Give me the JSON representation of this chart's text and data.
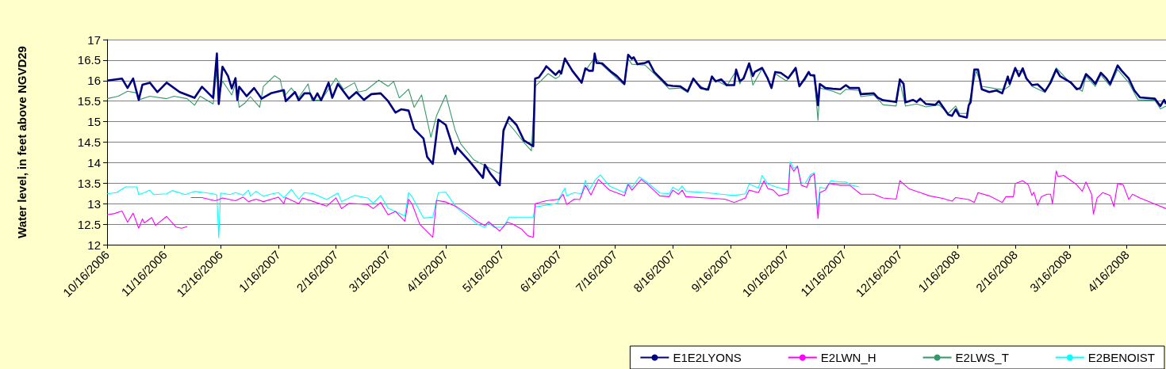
{
  "chart_data": {
    "type": "line",
    "ylabel": "Water level, in feet above NGVD29",
    "xlim": [
      "2006-10-16",
      "2008-05-07"
    ],
    "ylim": [
      12,
      17
    ],
    "yticks": [
      12,
      12.5,
      13,
      13.5,
      14,
      14.5,
      15,
      15.5,
      16,
      16.5,
      17
    ],
    "xticks": [
      {
        "value": "2006-10-16",
        "label": "10/16/2006"
      },
      {
        "value": "2006-11-16",
        "label": "11/16/2006"
      },
      {
        "value": "2006-12-16",
        "label": "12/16/2006"
      },
      {
        "value": "2007-01-16",
        "label": "1/16/2007"
      },
      {
        "value": "2007-02-16",
        "label": "2/16/2007"
      },
      {
        "value": "2007-03-16",
        "label": "3/16/2007"
      },
      {
        "value": "2007-04-16",
        "label": "4/16/2007"
      },
      {
        "value": "2007-05-16",
        "label": "5/16/2007"
      },
      {
        "value": "2007-06-16",
        "label": "6/16/2007"
      },
      {
        "value": "2007-07-16",
        "label": "7/16/2007"
      },
      {
        "value": "2007-08-16",
        "label": "8/16/2007"
      },
      {
        "value": "2007-09-16",
        "label": "9/16/2007"
      },
      {
        "value": "2007-10-16",
        "label": "10/16/2007"
      },
      {
        "value": "2007-11-16",
        "label": "11/16/2007"
      },
      {
        "value": "2007-12-16",
        "label": "12/16/2007"
      },
      {
        "value": "2008-01-16",
        "label": "1/16/2008"
      },
      {
        "value": "2008-02-16",
        "label": "2/16/2008"
      },
      {
        "value": "2008-03-16",
        "label": "3/16/2008"
      },
      {
        "value": "2008-04-16",
        "label": "4/16/2008"
      }
    ],
    "grid": "y",
    "legend": "bottom right",
    "marker": "none",
    "line_style": "solid",
    "series": [
      {
        "name": "E1E2LYONS",
        "color": "#000080",
        "x": [
          "2006-10-16",
          "2006-10-24",
          "2006-10-27",
          "2006-10-30",
          "2006-11-02",
          "2006-11-04",
          "2006-11-08",
          "2006-11-12",
          "2006-11-17",
          "2006-11-24",
          "2006-12-02",
          "2006-12-06",
          "2006-12-12",
          "2006-12-14",
          "2006-12-15",
          "2006-12-17",
          "2006-12-20",
          "2006-12-22",
          "2006-12-24",
          "2006-12-25",
          "2006-12-26",
          "2006-12-30",
          "2007-01-03",
          "2007-01-07",
          "2007-01-12",
          "2007-01-19",
          "2007-01-20",
          "2007-01-25",
          "2007-01-27",
          "2007-01-30",
          "2007-02-02",
          "2007-02-04",
          "2007-02-06",
          "2007-02-08",
          "2007-02-12",
          "2007-02-14",
          "2007-02-17",
          "2007-02-23",
          "2007-02-27",
          "2007-03-03",
          "2007-03-07",
          "2007-03-12",
          "2007-03-16",
          "2007-03-20",
          "2007-03-23",
          "2007-03-27",
          "2007-03-30",
          "2007-04-04",
          "2007-04-06",
          "2007-04-09",
          "2007-04-12",
          "2007-04-16",
          "2007-04-21",
          "2007-04-22",
          "2007-04-29",
          "2007-05-06",
          "2007-05-07",
          "2007-05-10",
          "2007-05-15",
          "2007-05-17",
          "2007-05-20",
          "2007-05-24",
          "2007-05-28",
          "2007-06-02",
          "2007-06-03",
          "2007-06-05",
          "2007-06-08",
          "2007-06-09",
          "2007-06-14",
          "2007-06-16",
          "2007-06-17",
          "2007-06-19",
          "2007-06-23",
          "2007-06-28",
          "2007-06-30",
          "2007-07-02",
          "2007-07-04",
          "2007-07-05",
          "2007-07-06",
          "2007-07-09",
          "2007-07-14",
          "2007-07-17",
          "2007-07-21",
          "2007-07-23",
          "2007-07-25",
          "2007-07-26",
          "2007-07-28",
          "2007-08-01",
          "2007-08-03",
          "2007-08-06",
          "2007-08-13",
          "2007-08-16",
          "2007-08-20",
          "2007-08-24",
          "2007-08-27",
          "2007-08-31",
          "2007-09-04",
          "2007-09-06",
          "2007-09-08",
          "2007-09-11",
          "2007-09-14",
          "2007-09-18",
          "2007-09-19",
          "2007-09-21",
          "2007-09-23",
          "2007-09-26",
          "2007-09-28",
          "2007-09-29",
          "2007-10-03",
          "2007-10-06",
          "2007-10-08",
          "2007-10-10",
          "2007-10-13",
          "2007-10-17",
          "2007-10-21",
          "2007-10-23",
          "2007-10-26",
          "2007-10-28",
          "2007-10-29",
          "2007-10-31",
          "2007-11-02",
          "2007-11-03",
          "2007-11-06",
          "2007-11-10",
          "2007-11-14",
          "2007-11-17",
          "2007-11-19",
          "2007-11-24",
          "2007-11-25",
          "2007-12-02",
          "2007-12-04",
          "2007-12-07",
          "2007-12-11",
          "2007-12-14",
          "2007-12-16",
          "2007-12-18",
          "2007-12-19",
          "2007-12-23",
          "2007-12-25",
          "2007-12-27",
          "2007-12-30",
          "2008-01-04",
          "2008-01-06",
          "2008-01-11",
          "2008-01-13",
          "2008-01-15",
          "2008-01-17",
          "2008-01-21",
          "2008-01-22",
          "2008-01-23",
          "2008-01-25",
          "2008-01-27",
          "2008-01-29",
          "2008-02-02",
          "2008-02-06",
          "2008-02-09",
          "2008-02-12",
          "2008-02-13",
          "2008-02-16",
          "2008-02-18",
          "2008-02-20",
          "2008-02-22",
          "2008-02-25",
          "2008-02-28",
          "2008-03-03",
          "2008-03-06",
          "2008-03-09",
          "2008-03-11",
          "2008-03-17",
          "2008-03-20",
          "2008-03-22",
          "2008-03-25",
          "2008-03-28",
          "2008-03-30",
          "2008-04-02",
          "2008-04-05",
          "2008-04-07",
          "2008-04-11",
          "2008-04-13",
          "2008-04-17",
          "2008-04-20",
          "2008-04-23",
          "2008-05-01",
          "2008-05-04",
          "2008-05-06",
          "2008-05-07"
        ],
        "values": [
          16.0,
          16.05,
          15.82,
          16.05,
          15.53,
          15.9,
          15.95,
          15.72,
          15.95,
          15.72,
          15.58,
          15.85,
          15.58,
          16.66,
          15.43,
          16.34,
          16.11,
          15.81,
          16.06,
          15.53,
          15.85,
          15.62,
          15.82,
          15.56,
          15.69,
          15.77,
          15.5,
          15.72,
          15.52,
          15.69,
          15.69,
          15.52,
          15.69,
          15.52,
          15.95,
          15.58,
          15.92,
          15.56,
          15.72,
          15.53,
          15.67,
          15.69,
          15.5,
          15.22,
          15.3,
          15.27,
          14.82,
          14.59,
          14.14,
          13.97,
          15.05,
          14.92,
          14.21,
          14.37,
          14.02,
          13.63,
          13.95,
          13.73,
          13.45,
          14.79,
          15.11,
          14.92,
          14.54,
          14.4,
          16.05,
          16.08,
          16.27,
          16.35,
          16.14,
          16.24,
          16.17,
          16.54,
          16.24,
          15.95,
          16.3,
          16.24,
          16.24,
          16.66,
          16.43,
          16.42,
          16.21,
          16.11,
          15.92,
          16.63,
          16.53,
          16.57,
          16.4,
          16.43,
          16.47,
          16.21,
          15.89,
          15.87,
          15.86,
          15.74,
          16.05,
          15.82,
          15.78,
          16.1,
          15.98,
          16.03,
          15.89,
          15.89,
          16.27,
          15.99,
          16.05,
          16.42,
          16.11,
          16.21,
          16.31,
          16.05,
          15.82,
          16.21,
          16.19,
          16.06,
          16.31,
          15.86,
          16.06,
          16.21,
          16.13,
          16.13,
          15.4,
          15.92,
          15.82,
          15.8,
          15.79,
          15.89,
          15.82,
          15.82,
          15.67,
          15.69,
          15.59,
          15.52,
          15.5,
          15.48,
          16.03,
          15.92,
          15.47,
          15.53,
          15.48,
          15.56,
          15.43,
          15.41,
          15.5,
          15.17,
          15.14,
          15.3,
          15.14,
          15.1,
          15.4,
          15.47,
          16.27,
          16.27,
          15.79,
          15.72,
          15.76,
          15.69,
          16.1,
          15.92,
          16.31,
          16.11,
          16.3,
          16.05,
          15.89,
          15.91,
          15.74,
          15.95,
          16.27,
          16.11,
          15.95,
          15.79,
          15.82,
          16.16,
          16.03,
          15.92,
          16.19,
          16.05,
          15.92,
          16.37,
          16.25,
          16.05,
          15.76,
          15.59,
          15.56,
          15.38,
          15.53,
          15.43
        ]
      },
      {
        "name": "E2LWN_H",
        "color": "#ff00ff",
        "x": [
          "2006-10-16",
          "2006-10-20",
          "2006-10-24",
          "2006-10-27",
          "2006-10-30",
          "2006-11-02",
          "2006-11-04",
          "2006-11-05",
          "2006-11-09",
          "2006-11-11",
          "2006-11-17",
          "2006-11-22",
          "2006-11-25",
          "2006-11-28",
          "2006-11-29",
          "2006-11-30",
          "2006-12-06",
          "2006-12-13",
          "2006-12-15",
          "2006-12-17",
          "2006-12-24",
          "2006-12-28",
          "2006-12-31",
          "2007-01-04",
          "2007-01-08",
          "2007-01-16",
          "2007-01-19",
          "2007-01-20",
          "2007-01-27",
          "2007-01-29",
          "2007-02-04",
          "2007-02-11",
          "2007-02-16",
          "2007-02-19",
          "2007-02-23",
          "2007-03-05",
          "2007-03-08",
          "2007-03-12",
          "2007-03-16",
          "2007-03-20",
          "2007-03-25",
          "2007-03-27",
          "2007-03-29",
          "2007-04-02",
          "2007-04-09",
          "2007-04-11",
          "2007-04-15",
          "2007-04-16",
          "2007-04-20",
          "2007-04-22",
          "2007-04-27",
          "2007-05-03",
          "2007-05-07",
          "2007-05-09",
          "2007-05-15",
          "2007-05-19",
          "2007-05-22",
          "2007-05-27",
          "2007-05-30",
          "2007-06-02",
          "2007-06-03",
          "2007-06-09",
          "2007-06-16",
          "2007-06-18",
          "2007-06-20",
          "2007-06-24",
          "2007-06-27",
          "2007-06-30",
          "2007-07-03",
          "2007-07-07",
          "2007-07-13",
          "2007-07-21",
          "2007-07-23",
          "2007-07-25",
          "2007-07-30",
          "2007-08-02",
          "2007-08-09",
          "2007-08-14",
          "2007-08-16",
          "2007-08-19",
          "2007-08-21",
          "2007-08-23",
          "2007-09-03",
          "2007-09-13",
          "2007-09-18",
          "2007-09-24",
          "2007-09-26",
          "2007-10-01",
          "2007-10-04",
          "2007-10-06",
          "2007-10-09",
          "2007-10-12",
          "2007-10-17",
          "2007-10-18",
          "2007-10-20",
          "2007-10-22",
          "2007-10-24",
          "2007-10-27",
          "2007-10-29",
          "2007-10-31",
          "2007-11-02",
          "2007-11-03",
          "2007-11-06",
          "2007-11-08",
          "2007-11-14",
          "2007-11-19",
          "2007-11-25",
          "2007-12-02",
          "2007-12-07",
          "2007-12-14",
          "2007-12-16",
          "2007-12-21",
          "2007-12-27",
          "2008-01-01",
          "2008-01-08",
          "2008-01-13",
          "2008-01-15",
          "2008-01-22",
          "2008-01-25",
          "2008-01-27",
          "2008-02-02",
          "2008-02-09",
          "2008-02-11",
          "2008-02-15",
          "2008-02-16",
          "2008-02-20",
          "2008-02-23",
          "2008-02-25",
          "2008-02-26",
          "2008-02-28",
          "2008-03-01",
          "2008-03-04",
          "2008-03-06",
          "2008-03-07",
          "2008-03-09",
          "2008-03-10",
          "2008-03-13",
          "2008-03-18",
          "2008-03-20",
          "2008-03-23",
          "2008-03-25",
          "2008-03-28",
          "2008-03-29",
          "2008-03-31",
          "2008-04-03",
          "2008-04-07",
          "2008-04-09",
          "2008-04-11",
          "2008-04-14",
          "2008-04-17",
          "2008-04-19",
          "2008-04-23",
          "2008-04-30",
          "2008-05-07"
        ],
        "values": [
          12.73,
          12.76,
          12.82,
          12.55,
          12.77,
          12.4,
          12.63,
          12.53,
          12.66,
          12.47,
          12.69,
          12.43,
          12.4,
          12.44,
          null,
          13.15,
          13.15,
          13.07,
          13.1,
          13.14,
          13.07,
          13.16,
          13.05,
          13.11,
          13.05,
          13.16,
          13.0,
          13.15,
          13.0,
          13.14,
          13.05,
          12.94,
          13.14,
          12.88,
          13.01,
          12.98,
          12.88,
          13.03,
          12.73,
          12.81,
          12.57,
          13.11,
          12.98,
          12.5,
          12.18,
          13.08,
          13.05,
          13.04,
          12.96,
          12.92,
          12.77,
          12.56,
          12.47,
          12.56,
          12.33,
          12.55,
          12.5,
          12.37,
          12.22,
          12.18,
          13.0,
          13.07,
          13.11,
          13.23,
          12.98,
          13.11,
          13.1,
          13.45,
          13.21,
          13.59,
          13.33,
          13.19,
          13.47,
          13.33,
          13.59,
          13.49,
          13.19,
          13.17,
          13.33,
          13.23,
          13.33,
          13.17,
          13.14,
          13.11,
          13.03,
          13.14,
          13.33,
          13.27,
          13.56,
          13.37,
          13.33,
          13.19,
          13.25,
          13.95,
          13.79,
          13.91,
          13.45,
          13.4,
          13.66,
          13.72,
          12.64,
          13.27,
          13.33,
          13.49,
          13.45,
          13.45,
          13.23,
          13.23,
          13.14,
          13.11,
          13.56,
          13.36,
          13.27,
          13.19,
          13.13,
          13.06,
          13.15,
          13.1,
          13.03,
          13.27,
          13.19,
          13.03,
          13.17,
          13.17,
          13.49,
          13.56,
          13.46,
          13.2,
          13.28,
          12.96,
          13.17,
          13.23,
          13.23,
          13.0,
          13.8,
          13.66,
          13.69,
          13.53,
          13.46,
          13.3,
          13.53,
          13.23,
          12.75,
          13.14,
          13.27,
          13.2,
          12.93,
          13.49,
          13.46,
          13.1,
          13.23,
          13.14,
          13.01,
          12.88
        ]
      },
      {
        "name": "E2LWS_T",
        "color": "#339966",
        "x": [
          "2006-10-16",
          "2006-10-22",
          "2006-10-27",
          "2006-11-01",
          "2006-11-02",
          "2006-11-08",
          "2006-11-17",
          "2006-11-21",
          "2006-11-28",
          "2006-12-02",
          "2006-12-05",
          "2006-12-12",
          "2006-12-14",
          "2006-12-15",
          "2006-12-17",
          "2006-12-22",
          "2006-12-24",
          "2006-12-26",
          "2006-12-29",
          "2007-01-01",
          "2007-01-06",
          "2007-01-08",
          "2007-01-14",
          "2007-01-17",
          "2007-01-19",
          "2007-01-23",
          "2007-01-27",
          "2007-02-01",
          "2007-02-03",
          "2007-02-08",
          "2007-02-16",
          "2007-02-20",
          "2007-02-26",
          "2007-02-28",
          "2007-03-04",
          "2007-03-11",
          "2007-03-14",
          "2007-03-16",
          "2007-03-19",
          "2007-03-22",
          "2007-03-27",
          "2007-03-30",
          "2007-04-03",
          "2007-04-08",
          "2007-04-11",
          "2007-04-16",
          "2007-04-19",
          "2007-04-21",
          "2007-04-24",
          "2007-05-01",
          "2007-05-09",
          "2007-05-15",
          "2007-05-17",
          "2007-05-19",
          "2007-05-23",
          "2007-05-28",
          "2007-06-01",
          "2007-06-03",
          "2007-06-06",
          "2007-06-10",
          "2007-06-14",
          "2007-06-16",
          "2007-06-19",
          "2007-06-28",
          "2007-06-30",
          "2007-07-05",
          "2007-07-09",
          "2007-07-21",
          "2007-07-23",
          "2007-07-25",
          "2007-08-01",
          "2007-08-06",
          "2007-08-14",
          "2007-08-20",
          "2007-08-24",
          "2007-08-27",
          "2007-09-03",
          "2007-09-06",
          "2007-09-14",
          "2007-09-19",
          "2007-09-21",
          "2007-09-26",
          "2007-09-28",
          "2007-10-03",
          "2007-10-08",
          "2007-10-10",
          "2007-10-16",
          "2007-10-21",
          "2007-10-23",
          "2007-10-26",
          "2007-10-28",
          "2007-10-31",
          "2007-11-02",
          "2007-11-03",
          "2007-11-10",
          "2007-11-14",
          "2007-11-17",
          "2007-11-24",
          "2007-11-25",
          "2007-12-02",
          "2007-12-07",
          "2007-12-14",
          "2007-12-16",
          "2007-12-19",
          "2007-12-25",
          "2007-12-30",
          "2008-01-06",
          "2008-01-11",
          "2008-01-15",
          "2008-01-17",
          "2008-01-21",
          "2008-01-22",
          "2008-01-26",
          "2008-01-29",
          "2008-02-06",
          "2008-02-10",
          "2008-02-13",
          "2008-02-16",
          "2008-02-20",
          "2008-02-25",
          "2008-03-03",
          "2008-03-09",
          "2008-03-17",
          "2008-03-23",
          "2008-03-25",
          "2008-03-30",
          "2008-04-02",
          "2008-04-07",
          "2008-04-11",
          "2008-04-17",
          "2008-04-22",
          "2008-05-01",
          "2008-05-04",
          "2008-05-07"
        ],
        "values": [
          15.56,
          15.62,
          15.74,
          15.7,
          15.53,
          15.62,
          15.56,
          15.62,
          15.56,
          15.4,
          15.62,
          15.43,
          16.3,
          15.58,
          15.99,
          15.65,
          15.92,
          15.35,
          15.45,
          15.61,
          15.35,
          15.86,
          16.12,
          16.03,
          15.61,
          15.82,
          15.59,
          15.92,
          15.52,
          15.52,
          16.06,
          15.79,
          15.95,
          15.72,
          15.76,
          16.01,
          15.92,
          15.86,
          15.98,
          15.58,
          15.79,
          15.35,
          15.65,
          14.62,
          15.14,
          15.65,
          15.14,
          14.79,
          14.46,
          14.07,
          13.88,
          13.73,
          14.72,
          14.99,
          14.78,
          14.49,
          14.29,
          15.86,
          15.99,
          16.17,
          16.05,
          16.1,
          16.5,
          15.93,
          16.24,
          16.56,
          16.38,
          15.89,
          16.53,
          16.4,
          16.38,
          16.17,
          15.8,
          15.82,
          15.71,
          16.01,
          15.76,
          16.06,
          15.87,
          16.24,
          15.92,
          16.37,
          15.89,
          16.29,
          15.86,
          16.17,
          15.99,
          16.27,
          15.89,
          16.01,
          16.17,
          16.08,
          15.03,
          15.82,
          15.74,
          15.67,
          15.79,
          15.76,
          15.61,
          15.65,
          15.41,
          15.38,
          15.97,
          15.38,
          15.43,
          15.36,
          15.41,
          15.2,
          15.38,
          15.2,
          15.2,
          15.41,
          16.24,
          15.86,
          15.8,
          15.78,
          15.87,
          16.27,
          16.21,
          15.86,
          15.71,
          16.31,
          15.92,
          15.74,
          16.11,
          15.86,
          16.14,
          15.87,
          16.27,
          15.95,
          15.53,
          15.52,
          15.31,
          15.38
        ]
      },
      {
        "name": "E2BENOIST",
        "color": "#00ffff",
        "x": [
          "2006-10-16",
          "2006-10-21",
          "2006-10-26",
          "2006-11-01",
          "2006-11-02",
          "2006-11-05",
          "2006-11-08",
          "2006-11-10",
          "2006-11-17",
          "2006-11-20",
          "2006-11-27",
          "2006-12-02",
          "2006-12-12",
          "2006-12-14",
          "2006-12-15",
          "2006-12-16",
          "2006-12-21",
          "2006-12-24",
          "2006-12-28",
          "2006-12-31",
          "2007-01-01",
          "2007-01-04",
          "2007-01-08",
          "2007-01-11",
          "2007-01-16",
          "2007-01-19",
          "2007-01-23",
          "2007-01-27",
          "2007-01-30",
          "2007-02-04",
          "2007-02-11",
          "2007-02-17",
          "2007-02-19",
          "2007-02-26",
          "2007-03-05",
          "2007-03-08",
          "2007-03-12",
          "2007-03-16",
          "2007-03-20",
          "2007-03-25",
          "2007-03-27",
          "2007-03-29",
          "2007-04-04",
          "2007-04-09",
          "2007-04-12",
          "2007-04-16",
          "2007-04-22",
          "2007-05-03",
          "2007-05-07",
          "2007-05-09",
          "2007-05-12",
          "2007-05-17",
          "2007-05-20",
          "2007-06-02",
          "2007-06-03",
          "2007-06-11",
          "2007-06-15",
          "2007-06-16",
          "2007-06-19",
          "2007-06-20",
          "2007-06-24",
          "2007-06-28",
          "2007-06-30",
          "2007-07-02",
          "2007-07-05",
          "2007-07-08",
          "2007-07-13",
          "2007-07-21",
          "2007-07-23",
          "2007-07-25",
          "2007-07-29",
          "2007-08-02",
          "2007-08-09",
          "2007-08-14",
          "2007-08-16",
          "2007-08-19",
          "2007-08-21",
          "2007-08-23",
          "2007-09-03",
          "2007-09-13",
          "2007-09-18",
          "2007-09-24",
          "2007-09-26",
          "2007-10-01",
          "2007-10-03",
          "2007-10-06",
          "2007-10-11",
          "2007-10-17",
          "2007-10-18",
          "2007-10-20",
          "2007-10-22",
          "2007-10-24",
          "2007-10-26",
          "2007-10-29",
          "2007-10-31",
          "2007-11-02",
          "2007-11-03",
          "2007-11-06",
          "2007-11-09",
          "2007-11-14",
          "2007-11-17",
          "2007-11-20",
          "2007-11-24"
        ],
        "values": [
          13.24,
          13.27,
          13.41,
          13.41,
          13.22,
          13.27,
          13.33,
          13.22,
          13.24,
          13.32,
          13.22,
          13.3,
          13.24,
          13.21,
          12.17,
          13.26,
          13.22,
          13.27,
          13.21,
          13.33,
          13.18,
          13.3,
          13.18,
          13.22,
          13.27,
          13.14,
          13.35,
          13.11,
          13.27,
          13.24,
          13.1,
          13.26,
          13.05,
          13.2,
          13.14,
          13.01,
          13.2,
          12.89,
          12.81,
          12.7,
          13.27,
          13.16,
          12.65,
          12.67,
          13.27,
          13.28,
          12.89,
          12.5,
          12.42,
          12.53,
          12.42,
          12.43,
          12.67,
          12.67,
          12.92,
          12.98,
          13.01,
          13.14,
          13.38,
          13.19,
          13.27,
          13.24,
          13.57,
          13.33,
          13.56,
          13.7,
          13.43,
          13.27,
          13.51,
          13.4,
          13.65,
          13.53,
          13.26,
          13.24,
          13.4,
          13.32,
          13.43,
          13.3,
          13.27,
          13.22,
          13.2,
          13.24,
          13.48,
          13.38,
          13.69,
          13.48,
          13.4,
          13.33,
          14.02,
          13.86,
          13.92,
          13.51,
          13.49,
          13.71,
          13.75,
          12.85,
          13.4,
          13.37,
          13.56,
          13.53,
          13.53,
          13.45,
          13.41
        ]
      }
    ]
  }
}
